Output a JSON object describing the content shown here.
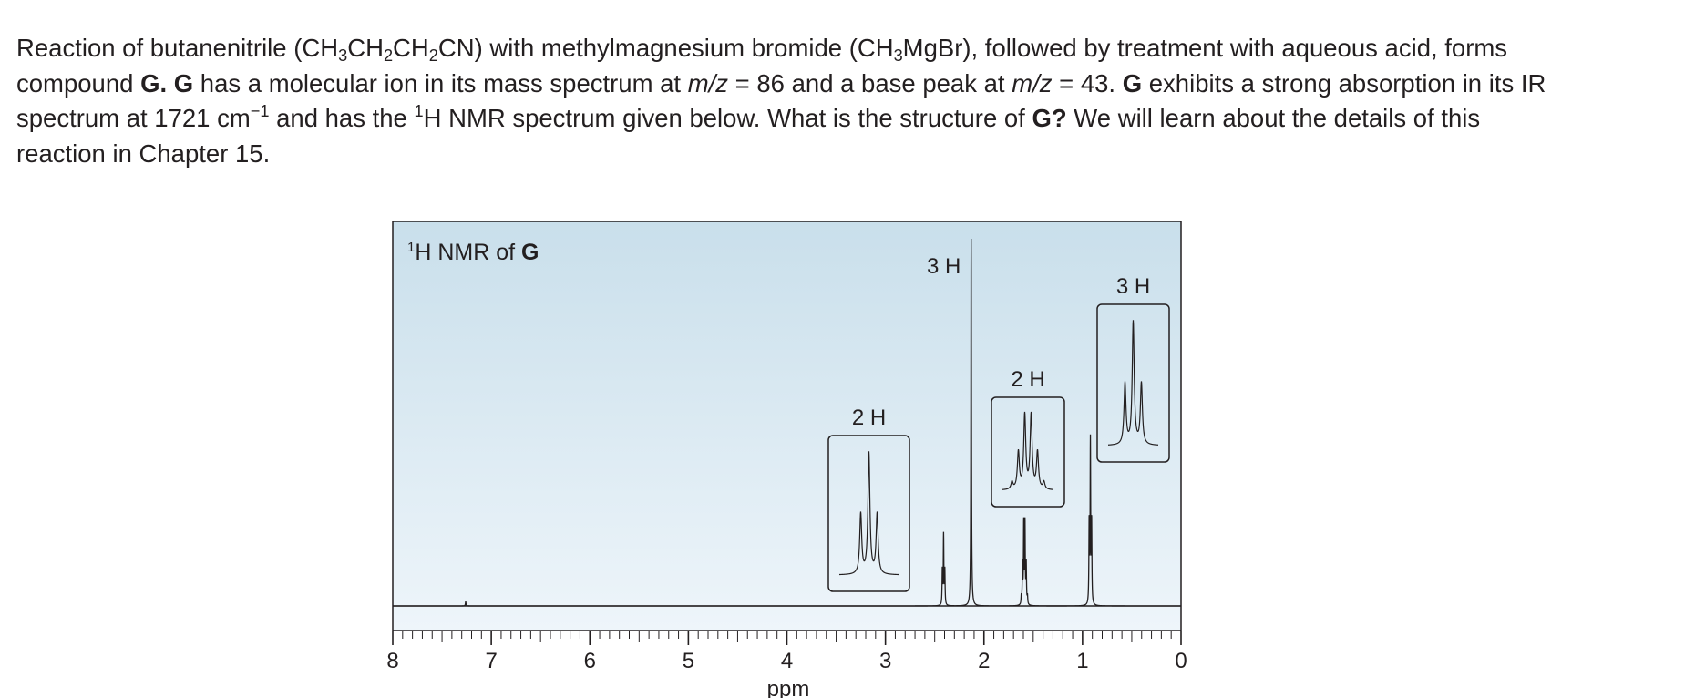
{
  "problem": {
    "t1": "Reaction of butanenitrile (CH",
    "s1": "3",
    "t2": "CH",
    "s2": "2",
    "t3": "CH",
    "s3": "2",
    "t4": "CN) with methylmagnesium bromide (CH",
    "s4": "3",
    "t5": "MgBr), followed by treatment with aqueous acid, forms compound ",
    "b1": "G.",
    "t6": " ",
    "b2": "G",
    "t7": " has a molecular ion in its mass spectrum at ",
    "i1": "m/z",
    "t8": " = 86 and a base peak at ",
    "i2": "m/z",
    "t9": " = 43. ",
    "b3": "G",
    "t10": " exhibits a strong absorption in its IR spectrum at 1721 cm",
    "sup1": "−1",
    "t11": " and has the ",
    "sup2": "1",
    "t12": "H NMR spectrum given below. What is the structure of ",
    "b4": "G?",
    "t13": " We will learn about the details of this reaction in Chapter 15."
  },
  "chart_data": {
    "type": "line",
    "title_sup": "1",
    "title_text": "H NMR of ",
    "title_bold": "G",
    "xlabel": "ppm",
    "xlim": [
      8,
      0
    ],
    "x_reversed": true,
    "x_ticks": [
      "8",
      "7",
      "6",
      "5",
      "4",
      "3",
      "2",
      "1",
      "0"
    ],
    "peaks": [
      {
        "ppm": 7.26,
        "height": 0.012,
        "label": "",
        "multiplicity": "singlet"
      },
      {
        "ppm": 2.41,
        "height": 0.19,
        "label": "2 H",
        "multiplicity": "triplet"
      },
      {
        "ppm": 2.13,
        "height": 1.0,
        "label": "3 H",
        "multiplicity": "singlet"
      },
      {
        "ppm": 1.59,
        "height": 0.22,
        "label": "2 H",
        "multiplicity": "sextet"
      },
      {
        "ppm": 0.92,
        "height": 0.44,
        "label": "3 H",
        "multiplicity": "triplet"
      }
    ],
    "insets": [
      {
        "for_ppm": 2.41,
        "label": "2 H"
      },
      {
        "for_ppm": 1.59,
        "label": "2 H"
      },
      {
        "for_ppm": 0.92,
        "label": "3 H"
      }
    ],
    "colors": {
      "plot_bg_top": "#c9dfeb",
      "plot_bg_bottom": "#eef5fa",
      "ink": "#231f20"
    }
  }
}
